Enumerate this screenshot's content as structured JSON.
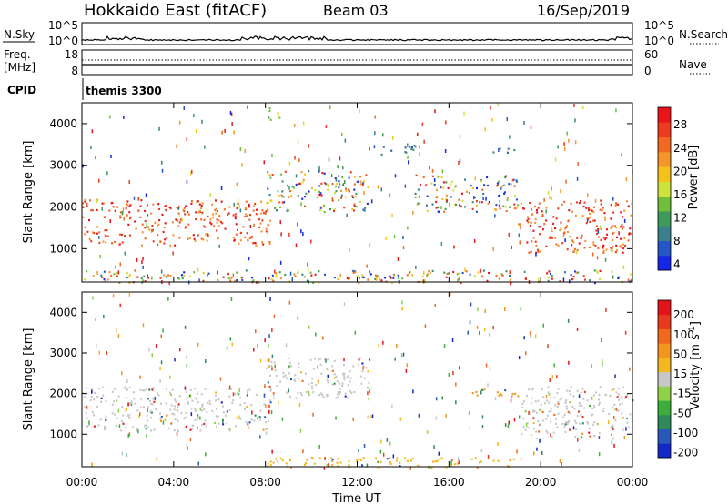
{
  "header": {
    "title": "Hokkaido East (fitACF)",
    "beam": "Beam 03",
    "date": "16/Sep/2019"
  },
  "nsky_panel": {
    "left_label": "N.Sky",
    "left_ticks": [
      "10^5",
      "10^0"
    ],
    "right_ticks": [
      "10^5",
      "10^0"
    ],
    "right_label": "N.Search"
  },
  "freq_panel": {
    "left_label_1": "Freq.",
    "left_label_2": "[MHz]",
    "left_ticks": [
      "18",
      "8"
    ],
    "right_ticks": [
      "60",
      "0"
    ],
    "right_label": "Nave"
  },
  "cpid_panel": {
    "left_label": "CPID",
    "program": "themis 3300"
  },
  "chart_data": [
    {
      "type": "heatmap",
      "name": "power",
      "ylabel": "Slant Range [km]",
      "xlim": [
        0,
        24
      ],
      "ylim": [
        200,
        4500
      ],
      "yticks": [
        "1000",
        "2000",
        "3000",
        "4000"
      ],
      "colorbar": {
        "label": "Power [dB]",
        "ticks": [
          "28",
          "24",
          "20",
          "16",
          "12",
          "8",
          "4"
        ],
        "colors": [
          "#1426e8",
          "#2456c8",
          "#3a7f8a",
          "#3e9a5a",
          "#6fbf3a",
          "#cde23a",
          "#f5c21a",
          "#f4962a",
          "#f26a22",
          "#ee3a1e",
          "#e8141a"
        ]
      },
      "echo_regions": [
        {
          "t0": 0.0,
          "t1": 8.2,
          "r0": 1100,
          "r1": 2200,
          "level": "high",
          "note": "broad strong echo band"
        },
        {
          "t0": 8.0,
          "t1": 12.5,
          "r0": 1900,
          "r1": 2900,
          "level": "mixed"
        },
        {
          "t0": 7.8,
          "t1": 8.6,
          "r0": 4100,
          "r1": 4400,
          "level": "medium"
        },
        {
          "t0": 13.0,
          "t1": 14.8,
          "r0": 3250,
          "r1": 3500,
          "level": "low"
        },
        {
          "t0": 14.5,
          "t1": 19.0,
          "r0": 1900,
          "r1": 2800,
          "level": "mixed"
        },
        {
          "t0": 17.8,
          "t1": 19.0,
          "r0": 3300,
          "r1": 3450,
          "level": "low"
        },
        {
          "t0": 19.0,
          "t1": 24.0,
          "r0": 900,
          "r1": 2200,
          "level": "high"
        },
        {
          "t0": 0.0,
          "t1": 24.0,
          "r0": 200,
          "r1": 500,
          "level": "mixed",
          "note": "near-range clutter"
        }
      ]
    },
    {
      "type": "heatmap",
      "name": "velocity",
      "ylabel": "Slant Range [km]",
      "xlabel": "Time UT",
      "xlim": [
        0,
        24
      ],
      "ylim": [
        200,
        4500
      ],
      "xticks": [
        "00:00",
        "04:00",
        "08:00",
        "12:00",
        "16:00",
        "20:00",
        "00:00"
      ],
      "yticks": [
        "1000",
        "2000",
        "3000",
        "4000"
      ],
      "colorbar": {
        "label": "Velocity [m s^-1]",
        "label_main": "Velocity [m s",
        "label_exp": "-1",
        "label_close": "]",
        "ticks": [
          "200",
          "100",
          "50",
          "15",
          "-15",
          "-50",
          "-100",
          "-200"
        ],
        "colors": [
          "#1428c8",
          "#2a58b8",
          "#2f8a5a",
          "#3cae3c",
          "#8fd24a",
          "#c8c8c8",
          "#f2b81e",
          "#f2961e",
          "#f06a1e",
          "#e83a1e",
          "#e2141a"
        ]
      },
      "echo_regions": [
        {
          "t0": 0.0,
          "t1": 8.2,
          "r0": 1100,
          "r1": 2200,
          "class": "ground-scatter",
          "color": "#c8c8c8"
        },
        {
          "t0": 8.0,
          "t1": 12.5,
          "r0": 1900,
          "r1": 2900,
          "class": "ground-scatter",
          "color": "#c8c8c8"
        },
        {
          "t0": 17.0,
          "t1": 19.5,
          "r0": 1950,
          "r1": 2150,
          "class": "negative",
          "color": "#f2961e"
        },
        {
          "t0": 19.0,
          "t1": 24.0,
          "r0": 900,
          "r1": 2200,
          "class": "ground-scatter",
          "color": "#c8c8c8"
        },
        {
          "t0": 8.0,
          "t1": 19.0,
          "r0": 200,
          "r1": 450,
          "class": "negative",
          "color": "#f2b81e"
        }
      ]
    }
  ],
  "colors": {
    "background": "#ffffff",
    "axis": "#000000",
    "ground_scatter": "#c8c8c8"
  }
}
